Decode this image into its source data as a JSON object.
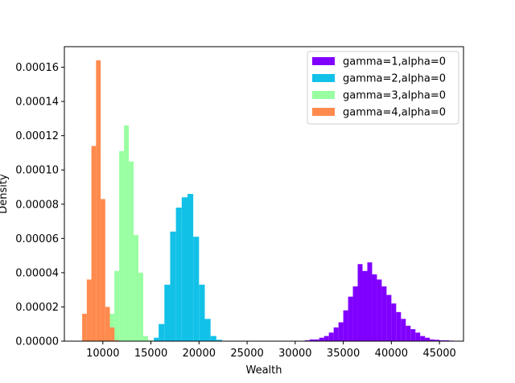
{
  "chart_data": {
    "type": "bar",
    "title": "",
    "xlabel": "Wealth",
    "ylabel": "Density",
    "xlim": [
      6000,
      47500
    ],
    "ylim": [
      0,
      0.000172
    ],
    "xticks": [
      10000,
      15000,
      20000,
      25000,
      30000,
      35000,
      40000,
      45000
    ],
    "xtick_labels": [
      "10000",
      "15000",
      "20000",
      "25000",
      "30000",
      "35000",
      "40000",
      "45000"
    ],
    "yticks": [
      0,
      2e-05,
      4e-05,
      6e-05,
      8e-05,
      0.0001,
      0.00012,
      0.00014,
      0.00016
    ],
    "ytick_labels": [
      "0.00000",
      "0.00002",
      "0.00004",
      "0.00006",
      "0.00008",
      "0.00010",
      "0.00012",
      "0.00014",
      "0.00016"
    ],
    "grid": false,
    "legend_position": "top-right",
    "series": [
      {
        "name": "gamma=1,alpha=0",
        "color": "#8000ff",
        "bins": [
          [
            31000,
            31500,
            5e-07
          ],
          [
            31500,
            32000,
            1e-06
          ],
          [
            32000,
            32500,
            1e-06
          ],
          [
            32500,
            33000,
            2e-06
          ],
          [
            33000,
            33500,
            3e-06
          ],
          [
            33500,
            34000,
            5e-06
          ],
          [
            34000,
            34500,
            8e-06
          ],
          [
            34500,
            35000,
            1.1e-05
          ],
          [
            35000,
            35500,
            1.8e-05
          ],
          [
            35500,
            36000,
            2.6e-05
          ],
          [
            36000,
            36500,
            3.2e-05
          ],
          [
            36500,
            37000,
            4.5e-05
          ],
          [
            37000,
            37500,
            4.1e-05
          ],
          [
            37500,
            38000,
            4.6e-05
          ],
          [
            38000,
            38500,
            3.9e-05
          ],
          [
            38500,
            39000,
            3.6e-05
          ],
          [
            39000,
            39500,
            3.2e-05
          ],
          [
            39500,
            40000,
            2.7e-05
          ],
          [
            40000,
            40500,
            2.2e-05
          ],
          [
            40500,
            41000,
            1.7e-05
          ],
          [
            41000,
            41500,
            1.3e-05
          ],
          [
            41500,
            42000,
            9e-06
          ],
          [
            42000,
            42500,
            7e-06
          ],
          [
            42500,
            43000,
            5e-06
          ],
          [
            43000,
            43500,
            3e-06
          ],
          [
            43500,
            44000,
            2e-06
          ],
          [
            44000,
            44500,
            1e-06
          ],
          [
            44500,
            45000,
            8e-07
          ],
          [
            45000,
            45500,
            5e-07
          ],
          [
            45500,
            46000,
            5e-07
          ],
          [
            46000,
            46500,
            3e-07
          ]
        ]
      },
      {
        "name": "gamma=2,alpha=0",
        "color": "#12c1e8",
        "bins": [
          [
            15300,
            15800,
            2e-06
          ],
          [
            15800,
            16400,
            1e-05
          ],
          [
            16400,
            17000,
            3.3e-05
          ],
          [
            17000,
            17600,
            6.4e-05
          ],
          [
            17600,
            18200,
            7.8e-05
          ],
          [
            18200,
            18800,
            8.4e-05
          ],
          [
            18800,
            19400,
            8.6e-05
          ],
          [
            19400,
            20000,
            6.1e-05
          ],
          [
            20000,
            20600,
            3.3e-05
          ],
          [
            20600,
            21200,
            1.3e-05
          ],
          [
            21200,
            21800,
            3e-06
          ],
          [
            21800,
            22400,
            8e-07
          ],
          [
            22400,
            23000,
            2e-07
          ]
        ]
      },
      {
        "name": "gamma=3,alpha=0",
        "color": "#99ffa1",
        "bins": [
          [
            10200,
            10700,
            4e-06
          ],
          [
            10700,
            11200,
            1.6e-05
          ],
          [
            11200,
            11700,
            4.1e-05
          ],
          [
            11700,
            12200,
            0.000111
          ],
          [
            12200,
            12700,
            0.000126
          ],
          [
            12700,
            13200,
            0.000105
          ],
          [
            13200,
            13700,
            6.2e-05
          ],
          [
            13700,
            14200,
            4e-05
          ],
          [
            14200,
            14700,
            3e-06
          ],
          [
            14700,
            15200,
            5e-07
          ]
        ]
      },
      {
        "name": "gamma=4,alpha=0",
        "color": "#ff8a4d",
        "bins": [
          [
            7850,
            8330,
            1.6e-05
          ],
          [
            8330,
            8810,
            3.6e-05
          ],
          [
            8810,
            9290,
            0.000114
          ],
          [
            9290,
            9770,
            0.000164
          ],
          [
            9770,
            10250,
            8.3e-05
          ],
          [
            10250,
            10730,
            2e-05
          ],
          [
            10730,
            11210,
            8e-06
          ],
          [
            11210,
            11690,
            5e-07
          ]
        ]
      }
    ]
  }
}
